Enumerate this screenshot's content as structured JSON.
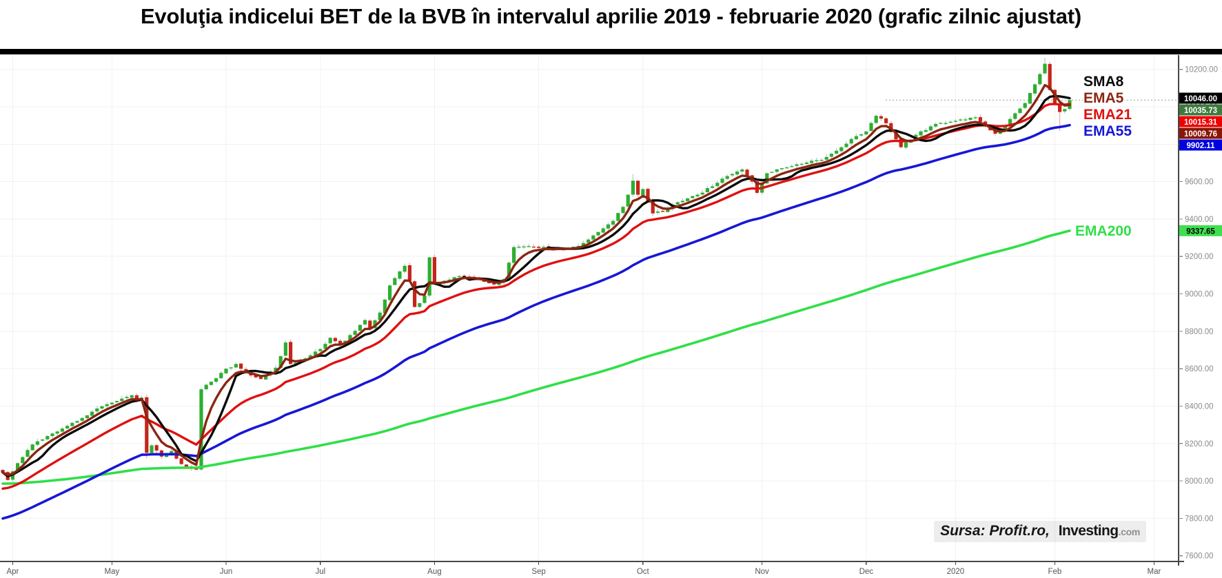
{
  "header": {
    "title": "Evoluţia indicelui BET de la BVB în intervalul aprilie 2019 - februarie 2020 (grafic zilnic ajustat)"
  },
  "watermark": {
    "prefix": "Sursa: Profit.ro,",
    "brand": "Investing",
    "suffix": ".com"
  },
  "chart_data": {
    "type": "candlestick",
    "title": "Evoluţia indicelui BET de la BVB în intervalul aprilie 2019 - februarie 2020 (grafic zilnic ajustat)",
    "instrument": "BET (BVB)",
    "x_axis": {
      "ticks": [
        {
          "label": "Apr",
          "day": 2
        },
        {
          "label": "May",
          "day": 22
        },
        {
          "label": "Jun",
          "day": 45
        },
        {
          "label": "Jul",
          "day": 64
        },
        {
          "label": "Aug",
          "day": 87
        },
        {
          "label": "Sep",
          "day": 108
        },
        {
          "label": "Oct",
          "day": 129
        },
        {
          "label": "Nov",
          "day": 153
        },
        {
          "label": "Dec",
          "day": 174
        },
        {
          "label": "2020",
          "day": 192
        },
        {
          "label": "Feb",
          "day": 212
        },
        {
          "label": "Mar",
          "day": 232
        }
      ]
    },
    "y_axis": {
      "min": 7600,
      "max": 10200,
      "step": 200,
      "grid": true,
      "tick_labels": [
        "10200.00",
        "10000.00",
        "9800.00",
        "9600.00",
        "9400.00",
        "9200.00",
        "9000.00",
        "8800.00",
        "8600.00",
        "8400.00",
        "8200.00",
        "8000.00",
        "7800.00",
        "7600.00"
      ]
    },
    "last_close": 10035.73,
    "close_waypoints": [
      [
        0,
        8045
      ],
      [
        1,
        8005
      ],
      [
        3,
        8095
      ],
      [
        6,
        8195
      ],
      [
        9,
        8240
      ],
      [
        12,
        8280
      ],
      [
        15,
        8320
      ],
      [
        18,
        8370
      ],
      [
        21,
        8410
      ],
      [
        24,
        8440
      ],
      [
        26,
        8458
      ],
      [
        27,
        8430
      ],
      [
        28,
        8445
      ],
      [
        29,
        8150
      ],
      [
        30,
        8190
      ],
      [
        32,
        8130
      ],
      [
        34,
        8160
      ],
      [
        36,
        8090
      ],
      [
        38,
        8065
      ],
      [
        39,
        8060
      ],
      [
        40,
        8490
      ],
      [
        42,
        8530
      ],
      [
        45,
        8600
      ],
      [
        47,
        8625
      ],
      [
        49,
        8580
      ],
      [
        52,
        8545
      ],
      [
        55,
        8605
      ],
      [
        57,
        8740
      ],
      [
        58,
        8625
      ],
      [
        61,
        8655
      ],
      [
        64,
        8705
      ],
      [
        66,
        8765
      ],
      [
        68,
        8730
      ],
      [
        70,
        8780
      ],
      [
        73,
        8860
      ],
      [
        74,
        8815
      ],
      [
        76,
        8900
      ],
      [
        78,
        9045
      ],
      [
        80,
        9120
      ],
      [
        81,
        9150
      ],
      [
        82,
        9070
      ],
      [
        83,
        8930
      ],
      [
        84,
        8950
      ],
      [
        85,
        8990
      ],
      [
        86,
        9195
      ],
      [
        87,
        9055
      ],
      [
        89,
        9070
      ],
      [
        92,
        9095
      ],
      [
        95,
        9085
      ],
      [
        99,
        9050
      ],
      [
        101,
        9080
      ],
      [
        103,
        9250
      ],
      [
        107,
        9252
      ],
      [
        111,
        9240
      ],
      [
        115,
        9252
      ],
      [
        117,
        9272
      ],
      [
        119,
        9312
      ],
      [
        121,
        9350
      ],
      [
        123,
        9390
      ],
      [
        125,
        9465
      ],
      [
        127,
        9605
      ],
      [
        128,
        9530
      ],
      [
        129,
        9560
      ],
      [
        131,
        9430
      ],
      [
        133,
        9440
      ],
      [
        136,
        9490
      ],
      [
        140,
        9530
      ],
      [
        143,
        9575
      ],
      [
        146,
        9630
      ],
      [
        149,
        9665
      ],
      [
        151,
        9600
      ],
      [
        152,
        9540
      ],
      [
        154,
        9645
      ],
      [
        157,
        9672
      ],
      [
        161,
        9695
      ],
      [
        165,
        9716
      ],
      [
        168,
        9765
      ],
      [
        171,
        9828
      ],
      [
        174,
        9868
      ],
      [
        176,
        9952
      ],
      [
        178,
        9912
      ],
      [
        181,
        9784
      ],
      [
        184,
        9850
      ],
      [
        188,
        9908
      ],
      [
        191,
        9920
      ],
      [
        193,
        9932
      ],
      [
        196,
        9944
      ],
      [
        198,
        9900
      ],
      [
        200,
        9856
      ],
      [
        202,
        9895
      ],
      [
        204,
        9965
      ],
      [
        206,
        10020
      ],
      [
        208,
        10120
      ],
      [
        209,
        10175
      ],
      [
        210,
        10230
      ],
      [
        211,
        10090
      ],
      [
        212,
        10012
      ],
      [
        213,
        9972
      ],
      [
        214,
        9988
      ],
      [
        215,
        10035.73
      ]
    ],
    "wick_overrides": {
      "29": {
        "low": 8120
      },
      "127": {
        "high": 9640
      },
      "210": {
        "high": 10262
      },
      "213": {
        "low": 9872
      }
    },
    "moving_averages": [
      {
        "label": "SMA8",
        "type": "sma",
        "period": 8,
        "color": "#0a0a0a",
        "last_value": 10046.0,
        "start_value": null
      },
      {
        "label": "EMA5",
        "type": "ema",
        "period": 5,
        "color": "#8b2612",
        "last_value": 10009.76,
        "start_value": null
      },
      {
        "label": "EMA21",
        "type": "ema",
        "period": 21,
        "color": "#e01010",
        "last_value": 10015.31,
        "start_value": 7950
      },
      {
        "label": "EMA55",
        "type": "ema",
        "period": 55,
        "color": "#1717d6",
        "last_value": 9902.11,
        "start_value": 7790
      },
      {
        "label": "EMA200",
        "type": "ema",
        "period": 200,
        "color": "#30df48",
        "last_value": 9337.65,
        "start_value": 7985
      }
    ],
    "price_tags": [
      {
        "label": "10046.00",
        "value": 10046.0,
        "bg": "#000000",
        "fg": "#ffffff",
        "series": "SMA8"
      },
      {
        "label": "10035.73",
        "value": 10035.73,
        "bg": "#3e7a3e",
        "fg": "#ffffff",
        "series": "last-close"
      },
      {
        "label": "10015.31",
        "value": 10015.31,
        "bg": "#ef0000",
        "fg": "#ffffff",
        "series": "EMA21"
      },
      {
        "label": "10009.76",
        "value": 10009.76,
        "bg": "#8b1507",
        "fg": "#ffffff",
        "series": "EMA5"
      },
      {
        "label": "9902.11",
        "value": 9902.11,
        "bg": "#0202e0",
        "fg": "#ffffff",
        "series": "EMA55"
      },
      {
        "label": "9337.65",
        "value": 9337.65,
        "bg": "#3fdf4f",
        "fg": "#000000",
        "series": "EMA200"
      }
    ],
    "candle_colors": {
      "up": "#2dae30",
      "down": "#c4251b",
      "up_wick": "#a8cfcf",
      "down_wick": "#edaaa4"
    },
    "grid_color": "#f1f1f1",
    "axis_color": "#454545",
    "tick_label_color": "#8a8a8a",
    "month_label_color": "#555555",
    "last_close_line_color": "#93b093"
  }
}
